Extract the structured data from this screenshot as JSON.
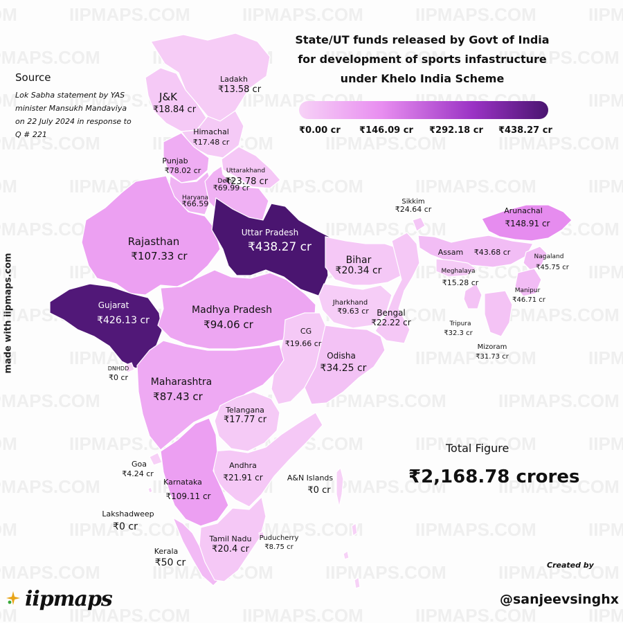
{
  "title": [
    "State/UT funds released by Govt of India",
    "for development of sports infastructure",
    "under Khelo India Scheme"
  ],
  "legend": {
    "ticks": [
      "₹0.00 cr",
      "₹146.09 cr",
      "₹292.18 cr",
      "₹438.27 cr"
    ],
    "min": 0,
    "max": 438.27,
    "colors": [
      "#f7d2f7",
      "#e88ef0",
      "#9a32c4",
      "#4a1570"
    ]
  },
  "source": {
    "heading": "Source",
    "text": "Lok Sabha statement by YAS minister Mansukh Mandaviya on 22 July 2024 in response to Q # 221"
  },
  "made_with": "made with iipmaps.com",
  "watermark": "IIPMAPS.COM",
  "total": {
    "label": "Total Figure",
    "value": "₹2,168.78 crores"
  },
  "credit": {
    "created_by": "Created by",
    "handle": "@sanjeevsinghx"
  },
  "brand": "iipmaps",
  "regions": [
    {
      "id": "ladakh",
      "name": "Ladakh",
      "amount": "₹13.58 cr",
      "value": 13.58
    },
    {
      "id": "jk",
      "name": "J&K",
      "amount": "₹18.84 cr",
      "value": 18.84
    },
    {
      "id": "himachal",
      "name": "Himachal",
      "amount": "₹17.48 cr",
      "value": 17.48
    },
    {
      "id": "punjab",
      "name": "Punjab",
      "amount": "₹78.02 cr",
      "value": 78.02
    },
    {
      "id": "uttarakhand",
      "name": "Uttarakhand",
      "amount": "₹23.78 cr",
      "value": 23.78
    },
    {
      "id": "haryana",
      "name": "Haryana",
      "amount": "₹66.59",
      "value": 66.59
    },
    {
      "id": "delhi",
      "name": "Delhi",
      "amount": "₹69.99 cr",
      "value": 69.99
    },
    {
      "id": "rajasthan",
      "name": "Rajasthan",
      "amount": "₹107.33 cr",
      "value": 107.33
    },
    {
      "id": "up",
      "name": "Uttar Pradesh",
      "amount": "₹438.27 cr",
      "value": 438.27
    },
    {
      "id": "gujarat",
      "name": "Gujarat",
      "amount": "₹426.13 cr",
      "value": 426.13
    },
    {
      "id": "mp",
      "name": "Madhya Pradesh",
      "amount": "₹94.06 cr",
      "value": 94.06
    },
    {
      "id": "bihar",
      "name": "Bihar",
      "amount": "₹20.34 cr",
      "value": 20.34
    },
    {
      "id": "jharkhand",
      "name": "Jharkhand",
      "amount": "₹9.63 cr",
      "value": 9.63
    },
    {
      "id": "bengal",
      "name": "Bengal",
      "amount": "₹22.22 cr",
      "value": 22.22
    },
    {
      "id": "cg",
      "name": "CG",
      "amount": "₹19.66 cr",
      "value": 19.66
    },
    {
      "id": "odisha",
      "name": "Odisha",
      "amount": "₹34.25 cr",
      "value": 34.25
    },
    {
      "id": "dnhdd",
      "name": "DNHDD",
      "amount": "₹0 cr",
      "value": 0
    },
    {
      "id": "maharashtra",
      "name": "Maharashtra",
      "amount": "₹87.43 cr",
      "value": 87.43
    },
    {
      "id": "telangana",
      "name": "Telangana",
      "amount": "₹17.77 cr",
      "value": 17.77
    },
    {
      "id": "goa",
      "name": "Goa",
      "amount": "₹4.24 cr",
      "value": 4.24
    },
    {
      "id": "andhra",
      "name": "Andhra",
      "amount": "₹21.91 cr",
      "value": 21.91
    },
    {
      "id": "karnataka",
      "name": "Karnataka",
      "amount": "₹109.11 cr",
      "value": 109.11
    },
    {
      "id": "lakshadweep",
      "name": "Lakshadweep",
      "amount": "₹0 cr",
      "value": 0
    },
    {
      "id": "kerala",
      "name": "Kerala",
      "amount": "₹50 cr",
      "value": 50
    },
    {
      "id": "tn",
      "name": "Tamil Nadu",
      "amount": "₹20.4 cr",
      "value": 20.4
    },
    {
      "id": "puducherry",
      "name": "Puducherry",
      "amount": "₹8.75 cr",
      "value": 8.75
    },
    {
      "id": "an",
      "name": "A&N Islands",
      "amount": "₹0 cr",
      "value": 0
    },
    {
      "id": "sikkim",
      "name": "Sikkim",
      "amount": "₹24.64 cr",
      "value": 24.64
    },
    {
      "id": "arunachal",
      "name": "Arunachal",
      "amount": "₹148.91 cr",
      "value": 148.91
    },
    {
      "id": "assam",
      "name": "Assam",
      "amount": "₹43.68 cr",
      "value": 43.68
    },
    {
      "id": "meghalaya",
      "name": "Meghalaya",
      "amount": "₹15.28 cr",
      "value": 15.28
    },
    {
      "id": "nagaland",
      "name": "Nagaland",
      "amount": "₹45.75 cr",
      "value": 45.75
    },
    {
      "id": "manipur",
      "name": "Manipur",
      "amount": "₹46.71 cr",
      "value": 46.71
    },
    {
      "id": "tripura",
      "name": "Tripura",
      "amount": "₹32.3 cr",
      "value": 32.3
    },
    {
      "id": "mizoram",
      "name": "Mizoram",
      "amount": "₹31.73 cr",
      "value": 31.73
    }
  ]
}
